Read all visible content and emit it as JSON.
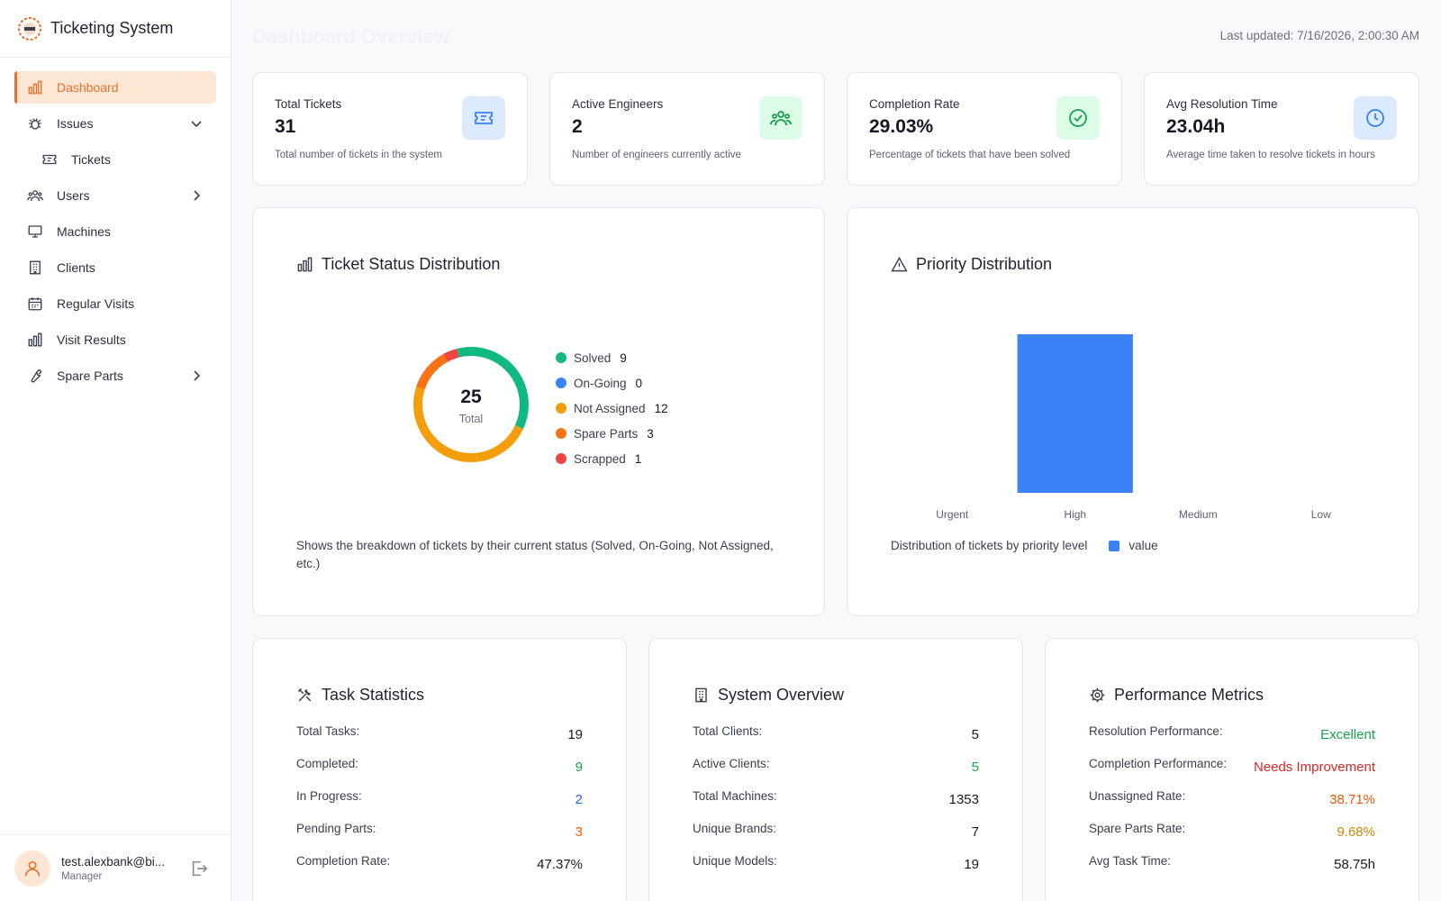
{
  "app": {
    "title": "Ticketing System"
  },
  "sidebar": {
    "items": [
      {
        "label": "Dashboard",
        "icon": "bar-chart-icon"
      },
      {
        "label": "Issues",
        "icon": "bug-icon"
      },
      {
        "label": "Tickets",
        "icon": "ticket-icon"
      },
      {
        "label": "Users",
        "icon": "users-icon"
      },
      {
        "label": "Machines",
        "icon": "monitor-icon"
      },
      {
        "label": "Clients",
        "icon": "building-icon"
      },
      {
        "label": "Regular Visits",
        "icon": "calendar-icon"
      },
      {
        "label": "Visit Results",
        "icon": "bar-chart-icon"
      },
      {
        "label": "Spare Parts",
        "icon": "wrench-icon"
      }
    ],
    "user": {
      "email": "test.alexbank@bi...",
      "role": "Manager"
    }
  },
  "header": {
    "title": "Dashboard Overview",
    "last_updated": "Last updated: 7/16/2026, 2:00:30 AM"
  },
  "stats": [
    {
      "label": "Total Tickets",
      "value": "31",
      "desc": "Total number of tickets in the system",
      "icon": "ticket-icon",
      "color": "#3b82f6",
      "bg": "#dbeafe"
    },
    {
      "label": "Active Engineers",
      "value": "2",
      "desc": "Number of engineers currently active",
      "icon": "users-icon",
      "color": "#16a34a",
      "bg": "#dcfce7"
    },
    {
      "label": "Completion Rate",
      "value": "29.03%",
      "desc": "Percentage of tickets that have been solved",
      "icon": "check-circle-icon",
      "color": "#16a34a",
      "bg": "#dcfce7"
    },
    {
      "label": "Avg Resolution Time",
      "value": "23.04h",
      "desc": "Average time taken to resolve tickets in hours",
      "icon": "clock-icon",
      "color": "#3b82f6",
      "bg": "#dbeafe"
    }
  ],
  "status_panel": {
    "title": "Ticket Status Distribution",
    "total": "25",
    "total_label": "Total",
    "note": "Shows the breakdown of tickets by their current status (Solved, On-Going, Not Assigned, etc.)"
  },
  "priority_panel": {
    "title": "Priority Distribution",
    "note": "Distribution of tickets by priority level",
    "legend": "value"
  },
  "chart_data": [
    {
      "type": "pie",
      "categories": [
        "Solved",
        "On-Going",
        "Not Assigned",
        "Spare Parts",
        "Scrapped"
      ],
      "values": [
        9,
        0,
        12,
        3,
        1
      ],
      "colors": [
        "#10b981",
        "#3b82f6",
        "#f59e0b",
        "#f97316",
        "#ef4444"
      ],
      "title": "Ticket Status Distribution",
      "legend": "right"
    },
    {
      "type": "bar",
      "categories": [
        "Urgent",
        "High",
        "Medium",
        "Low"
      ],
      "series": [
        {
          "name": "value",
          "values": [
            0,
            1,
            0,
            0
          ]
        }
      ],
      "color": "#3b82f6",
      "title": "Priority Distribution",
      "legend": "bottom",
      "ylim": [
        0,
        1
      ]
    }
  ],
  "task_stats": {
    "title": "Task Statistics",
    "rows": [
      {
        "label": "Total Tasks:",
        "value": "19",
        "color": "#151925"
      },
      {
        "label": "Completed:",
        "value": "9",
        "color": "#16a34a"
      },
      {
        "label": "In Progress:",
        "value": "2",
        "color": "#2563eb"
      },
      {
        "label": "Pending Parts:",
        "value": "3",
        "color": "#ea580c"
      },
      {
        "label": "Completion Rate:",
        "value": "47.37%",
        "color": "#151925"
      }
    ]
  },
  "system_overview": {
    "title": "System Overview",
    "rows": [
      {
        "label": "Total Clients:",
        "value": "5",
        "color": "#151925"
      },
      {
        "label": "Active Clients:",
        "value": "5",
        "color": "#16a34a"
      },
      {
        "label": "Total Machines:",
        "value": "1353",
        "color": "#151925"
      },
      {
        "label": "Unique Brands:",
        "value": "7",
        "color": "#151925"
      },
      {
        "label": "Unique Models:",
        "value": "19",
        "color": "#151925"
      }
    ]
  },
  "performance": {
    "title": "Performance Metrics",
    "rows": [
      {
        "label": "Resolution Performance:",
        "value": "Excellent",
        "color": "#16a34a"
      },
      {
        "label": "Completion Performance:",
        "value": "Needs Improvement",
        "color": "#dc2626"
      },
      {
        "label": "Unassigned Rate:",
        "value": "38.71%",
        "color": "#ea580c"
      },
      {
        "label": "Spare Parts Rate:",
        "value": "9.68%",
        "color": "#ca8a04"
      },
      {
        "label": "Avg Task Time:",
        "value": "58.75h",
        "color": "#151925"
      }
    ]
  }
}
